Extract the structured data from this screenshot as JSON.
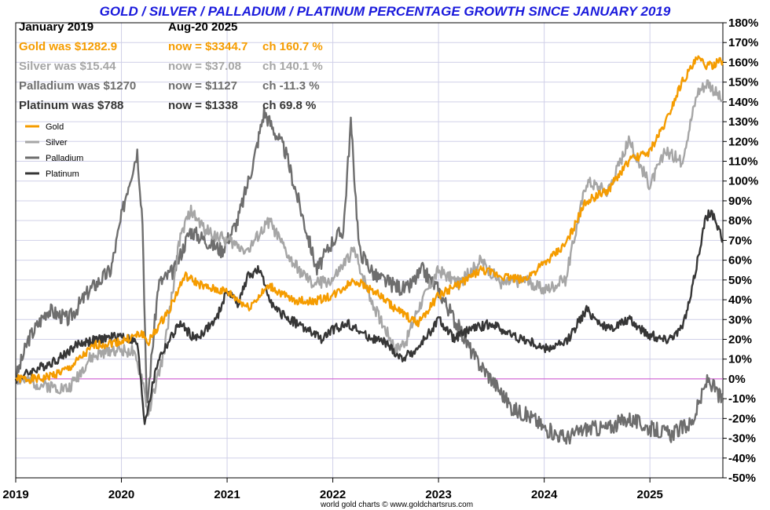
{
  "chart_data": {
    "type": "line",
    "title": "GOLD / SILVER / PALLADIUM / PLATINUM PERCENTAGE GROWTH SINCE JANUARY 2019",
    "ylim": [
      -50,
      180
    ],
    "xlim": [
      2019.0,
      2025.69
    ],
    "y_ticks": [
      -50,
      -40,
      -30,
      -20,
      -10,
      0,
      10,
      20,
      30,
      40,
      50,
      60,
      70,
      80,
      90,
      100,
      110,
      120,
      130,
      140,
      150,
      160,
      170,
      180
    ],
    "y_tick_suffix": "%",
    "x_ticks": [
      2019,
      2020,
      2021,
      2022,
      2023,
      2024,
      2025
    ],
    "x_tick_labels": [
      "2019",
      "2020",
      "2021",
      "2022",
      "2023",
      "2024",
      "2025"
    ],
    "grid": true,
    "zero_line_color": "#d050d0",
    "header": {
      "start_label": "January 2019",
      "end_label": "Aug-20  2025"
    },
    "footer": "world gold charts © www.goldchartsrus.com",
    "series": [
      {
        "name": "Gold",
        "color": "#f59c00",
        "was": "Gold was $1282.9",
        "now": "now = $3344.7",
        "change": "ch 160.7 %",
        "x": [
          2019.0,
          2019.25,
          2019.5,
          2019.75,
          2020.0,
          2020.2,
          2020.25,
          2020.45,
          2020.6,
          2020.8,
          2021.0,
          2021.2,
          2021.4,
          2021.6,
          2021.8,
          2022.0,
          2022.2,
          2022.4,
          2022.6,
          2022.8,
          2023.0,
          2023.2,
          2023.4,
          2023.6,
          2023.8,
          2024.0,
          2024.2,
          2024.4,
          2024.6,
          2024.8,
          2025.0,
          2025.15,
          2025.3,
          2025.45,
          2025.55,
          2025.69
        ],
        "y": [
          0,
          0,
          5,
          17,
          19,
          23,
          18,
          35,
          52,
          46,
          44,
          36,
          47,
          40,
          39,
          42,
          50,
          44,
          35,
          28,
          42,
          48,
          55,
          52,
          50,
          58,
          68,
          90,
          95,
          110,
          115,
          130,
          150,
          162,
          158,
          160.7
        ]
      },
      {
        "name": "Silver",
        "color": "#a6a6a6",
        "was": "Silver was $15.44",
        "now": "now = $37.08",
        "change": "ch 140.1 %",
        "x": [
          2019.0,
          2019.25,
          2019.5,
          2019.7,
          2019.9,
          2020.1,
          2020.2,
          2020.25,
          2020.4,
          2020.55,
          2020.65,
          2020.8,
          2021.0,
          2021.2,
          2021.4,
          2021.6,
          2021.8,
          2022.0,
          2022.2,
          2022.4,
          2022.6,
          2022.7,
          2022.8,
          2023.0,
          2023.2,
          2023.4,
          2023.6,
          2023.8,
          2024.0,
          2024.2,
          2024.4,
          2024.6,
          2024.8,
          2025.0,
          2025.15,
          2025.3,
          2025.45,
          2025.55,
          2025.69
        ],
        "y": [
          0,
          -3,
          -5,
          10,
          15,
          14,
          0,
          -18,
          12,
          70,
          85,
          75,
          70,
          65,
          80,
          60,
          48,
          50,
          65,
          35,
          15,
          20,
          35,
          55,
          48,
          60,
          48,
          50,
          45,
          50,
          100,
          95,
          120,
          98,
          115,
          110,
          145,
          150,
          140.1
        ]
      },
      {
        "name": "Palladium",
        "color": "#6e6e6e",
        "was": "Palladium was $1270",
        "now": "now = $1127",
        "change": "ch -11.3 %",
        "x": [
          2019.0,
          2019.12,
          2019.3,
          2019.5,
          2019.7,
          2019.9,
          2020.05,
          2020.15,
          2020.2,
          2020.24,
          2020.35,
          2020.5,
          2020.65,
          2020.8,
          2020.95,
          2021.1,
          2021.25,
          2021.35,
          2021.55,
          2021.7,
          2021.85,
          2022.0,
          2022.1,
          2022.17,
          2022.25,
          2022.4,
          2022.55,
          2022.7,
          2022.85,
          2023.0,
          2023.15,
          2023.35,
          2023.5,
          2023.7,
          2023.9,
          2024.0,
          2024.2,
          2024.4,
          2024.6,
          2024.8,
          2025.0,
          2025.2,
          2025.4,
          2025.55,
          2025.69
        ],
        "y": [
          0,
          20,
          35,
          30,
          45,
          55,
          95,
          115,
          80,
          -15,
          48,
          55,
          75,
          70,
          65,
          80,
          110,
          135,
          115,
          85,
          55,
          70,
          75,
          130,
          65,
          52,
          48,
          45,
          55,
          45,
          30,
          10,
          0,
          -15,
          -20,
          -25,
          -30,
          -25,
          -25,
          -20,
          -25,
          -28,
          -22,
          0,
          -11.3
        ]
      },
      {
        "name": "Platinum",
        "color": "#363636",
        "was": "Platinum was $788",
        "now": "now = $1338",
        "change": "ch 69.8 %",
        "x": [
          2019.0,
          2019.2,
          2019.4,
          2019.6,
          2019.8,
          2020.0,
          2020.15,
          2020.22,
          2020.35,
          2020.55,
          2020.7,
          2020.9,
          2021.0,
          2021.1,
          2021.2,
          2021.3,
          2021.45,
          2021.6,
          2021.75,
          2021.9,
          2022.0,
          2022.15,
          2022.3,
          2022.5,
          2022.65,
          2022.8,
          2023.0,
          2023.15,
          2023.3,
          2023.5,
          2023.7,
          2023.9,
          2024.0,
          2024.2,
          2024.4,
          2024.6,
          2024.8,
          2025.0,
          2025.15,
          2025.3,
          2025.38,
          2025.45,
          2025.52,
          2025.58,
          2025.69
        ],
        "y": [
          0,
          5,
          10,
          18,
          20,
          22,
          18,
          -22,
          10,
          28,
          20,
          30,
          45,
          38,
          52,
          55,
          35,
          30,
          25,
          20,
          25,
          28,
          22,
          18,
          10,
          15,
          30,
          20,
          25,
          28,
          22,
          18,
          15,
          18,
          35,
          25,
          30,
          22,
          20,
          25,
          40,
          60,
          80,
          85,
          69.8
        ]
      }
    ]
  }
}
